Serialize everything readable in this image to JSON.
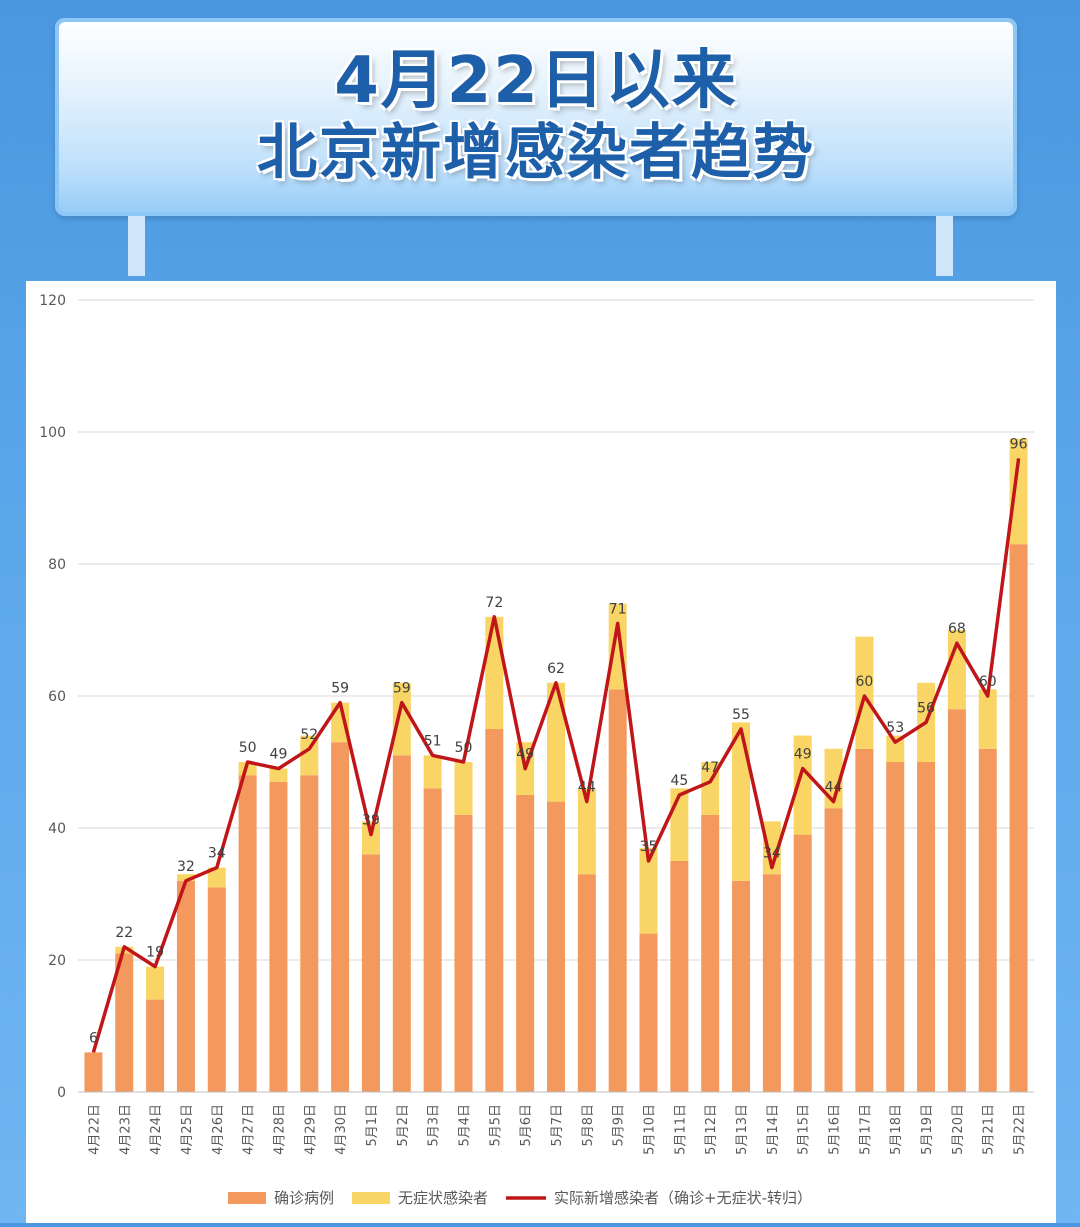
{
  "title": {
    "line1": "4月22日以来",
    "line2": "北京新增感染者趋势"
  },
  "chart_data": {
    "type": "bar",
    "stacked": true,
    "categories": [
      "4月22日",
      "4月23日",
      "4月24日",
      "4月25日",
      "4月26日",
      "4月27日",
      "4月28日",
      "4月29日",
      "4月30日",
      "5月1日",
      "5月2日",
      "5月3日",
      "5月4日",
      "5月5日",
      "5月6日",
      "5月7日",
      "5月8日",
      "5月9日",
      "5月10日",
      "5月11日",
      "5月12日",
      "5月13日",
      "5月14日",
      "5月15日",
      "5月16日",
      "5月17日",
      "5月18日",
      "5月19日",
      "5月20日",
      "5月21日",
      "5月22日"
    ],
    "series": [
      {
        "name": "确诊病例",
        "kind": "bar",
        "color": "#f4995e",
        "values": [
          6,
          21,
          14,
          32,
          31,
          48,
          47,
          48,
          53,
          36,
          51,
          46,
          42,
          55,
          45,
          44,
          33,
          61,
          24,
          35,
          42,
          32,
          33,
          39,
          43,
          52,
          50,
          50,
          58,
          52,
          83
        ]
      },
      {
        "name": "无症状感染者",
        "kind": "bar",
        "color": "#f9d565",
        "values": [
          0,
          1,
          5,
          1,
          3,
          2,
          2,
          6,
          6,
          5,
          11,
          5,
          8,
          17,
          8,
          18,
          13,
          13,
          13,
          11,
          8,
          24,
          8,
          15,
          9,
          17,
          4,
          12,
          12,
          9,
          16
        ]
      },
      {
        "name": "实际新增感染者（确诊+无症状-转归）",
        "kind": "line",
        "color": "#c0161a",
        "values": [
          6,
          22,
          19,
          32,
          34,
          50,
          49,
          52,
          59,
          39,
          59,
          51,
          50,
          72,
          49,
          62,
          44,
          71,
          35,
          45,
          47,
          55,
          34,
          49,
          44,
          60,
          53,
          56,
          68,
          60,
          96
        ]
      }
    ],
    "ylim": [
      0,
      120
    ],
    "yticks": [
      0,
      20,
      40,
      60,
      80,
      100,
      120
    ],
    "grid": true,
    "legend": "bottom"
  }
}
